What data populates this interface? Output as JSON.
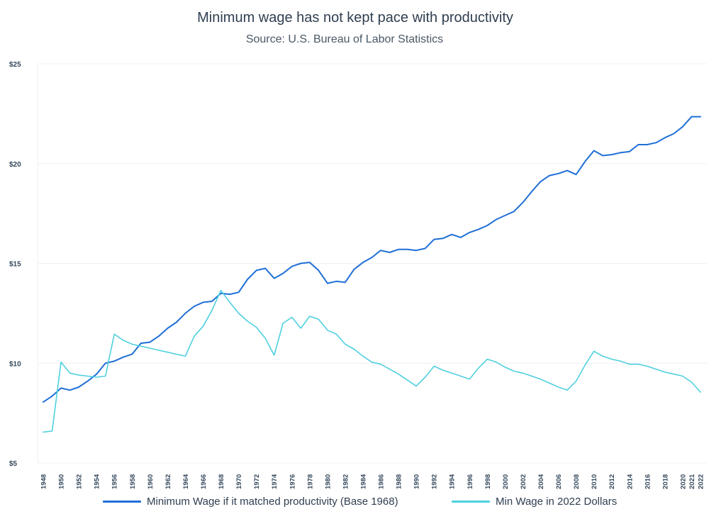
{
  "chart_data": {
    "type": "line",
    "title": "Minimum wage has not kept pace with productivity",
    "subtitle": "Source: U.S. Bureau of Labor Statistics",
    "ylim": [
      5,
      25
    ],
    "yticks": [
      "$5",
      "$10",
      "$15",
      "$20",
      "$25"
    ],
    "ytick_values": [
      5,
      10,
      15,
      20,
      25
    ],
    "xlim": [
      1948,
      2022
    ],
    "xticks": [
      1948,
      1950,
      1952,
      1954,
      1956,
      1958,
      1960,
      1962,
      1964,
      1966,
      1968,
      1970,
      1972,
      1974,
      1976,
      1978,
      1980,
      1982,
      1984,
      1986,
      1988,
      1990,
      1992,
      1994,
      1996,
      1998,
      2000,
      2002,
      2004,
      2006,
      2008,
      2010,
      2012,
      2014,
      2016,
      2018,
      2020,
      2021,
      2022
    ],
    "grid": true,
    "legend_position": "bottom",
    "series": [
      {
        "name": "Minimum Wage if it matched productivity (Base 1968)",
        "color": "#1f6fd6",
        "x": [
          1948,
          1949,
          1950,
          1951,
          1952,
          1953,
          1954,
          1955,
          1956,
          1957,
          1958,
          1959,
          1960,
          1961,
          1962,
          1963,
          1964,
          1965,
          1966,
          1967,
          1968,
          1969,
          1970,
          1971,
          1972,
          1973,
          1974,
          1975,
          1976,
          1977,
          1978,
          1979,
          1980,
          1981,
          1982,
          1983,
          1984,
          1985,
          1986,
          1987,
          1988,
          1989,
          1990,
          1991,
          1992,
          1993,
          1994,
          1995,
          1996,
          1997,
          1998,
          1999,
          2000,
          2001,
          2002,
          2003,
          2004,
          2005,
          2006,
          2007,
          2008,
          2009,
          2010,
          2011,
          2012,
          2013,
          2014,
          2015,
          2016,
          2017,
          2018,
          2019,
          2020,
          2021,
          2022
        ],
        "values": [
          8.05,
          8.35,
          8.75,
          8.65,
          8.8,
          9.1,
          9.45,
          10.0,
          10.1,
          10.3,
          10.45,
          11.0,
          11.05,
          11.35,
          11.75,
          12.05,
          12.5,
          12.85,
          13.05,
          13.1,
          13.5,
          13.45,
          13.55,
          14.2,
          14.65,
          14.75,
          14.25,
          14.5,
          14.85,
          15.0,
          15.05,
          14.65,
          14.0,
          14.1,
          14.05,
          14.7,
          15.05,
          15.3,
          15.65,
          15.55,
          15.7,
          15.7,
          15.65,
          15.75,
          16.2,
          16.25,
          16.45,
          16.3,
          16.55,
          16.7,
          16.9,
          17.2,
          17.4,
          17.6,
          18.05,
          18.6,
          19.1,
          19.4,
          19.5,
          19.65,
          19.45,
          20.1,
          20.65,
          20.4,
          20.45,
          20.55,
          20.6,
          20.95,
          20.95,
          21.05,
          21.3,
          21.5,
          21.85,
          22.35,
          22.35
        ]
      },
      {
        "name": "Min Wage in 2022 Dollars",
        "color": "#4fd0de",
        "x": [
          1948,
          1949,
          1950,
          1951,
          1952,
          1953,
          1954,
          1955,
          1956,
          1957,
          1958,
          1959,
          1960,
          1961,
          1962,
          1963,
          1964,
          1965,
          1966,
          1967,
          1968,
          1969,
          1970,
          1971,
          1972,
          1973,
          1974,
          1975,
          1976,
          1977,
          1978,
          1979,
          1980,
          1981,
          1982,
          1983,
          1984,
          1985,
          1986,
          1987,
          1988,
          1989,
          1990,
          1991,
          1992,
          1993,
          1994,
          1995,
          1996,
          1997,
          1998,
          1999,
          2000,
          2001,
          2002,
          2003,
          2004,
          2005,
          2006,
          2007,
          2008,
          2009,
          2010,
          2011,
          2012,
          2013,
          2014,
          2015,
          2016,
          2017,
          2018,
          2019,
          2020,
          2021,
          2022
        ],
        "values": [
          6.55,
          6.6,
          10.05,
          9.5,
          9.4,
          9.35,
          9.3,
          9.35,
          11.45,
          11.15,
          10.95,
          10.85,
          10.75,
          10.65,
          10.55,
          10.45,
          10.35,
          11.35,
          11.85,
          12.65,
          13.65,
          13.05,
          12.5,
          12.1,
          11.8,
          11.25,
          10.4,
          12.0,
          12.3,
          11.75,
          12.35,
          12.2,
          11.65,
          11.45,
          10.95,
          10.7,
          10.35,
          10.05,
          9.95,
          9.7,
          9.45,
          9.15,
          8.85,
          9.3,
          9.85,
          9.65,
          9.5,
          9.35,
          9.2,
          9.75,
          10.2,
          10.05,
          9.8,
          9.6,
          9.5,
          9.35,
          9.2,
          9.0,
          8.8,
          8.65,
          9.1,
          9.9,
          10.6,
          10.35,
          10.2,
          10.1,
          9.95,
          9.95,
          9.85,
          9.7,
          9.55,
          9.45,
          9.35,
          9.05,
          8.55
        ]
      }
    ]
  }
}
